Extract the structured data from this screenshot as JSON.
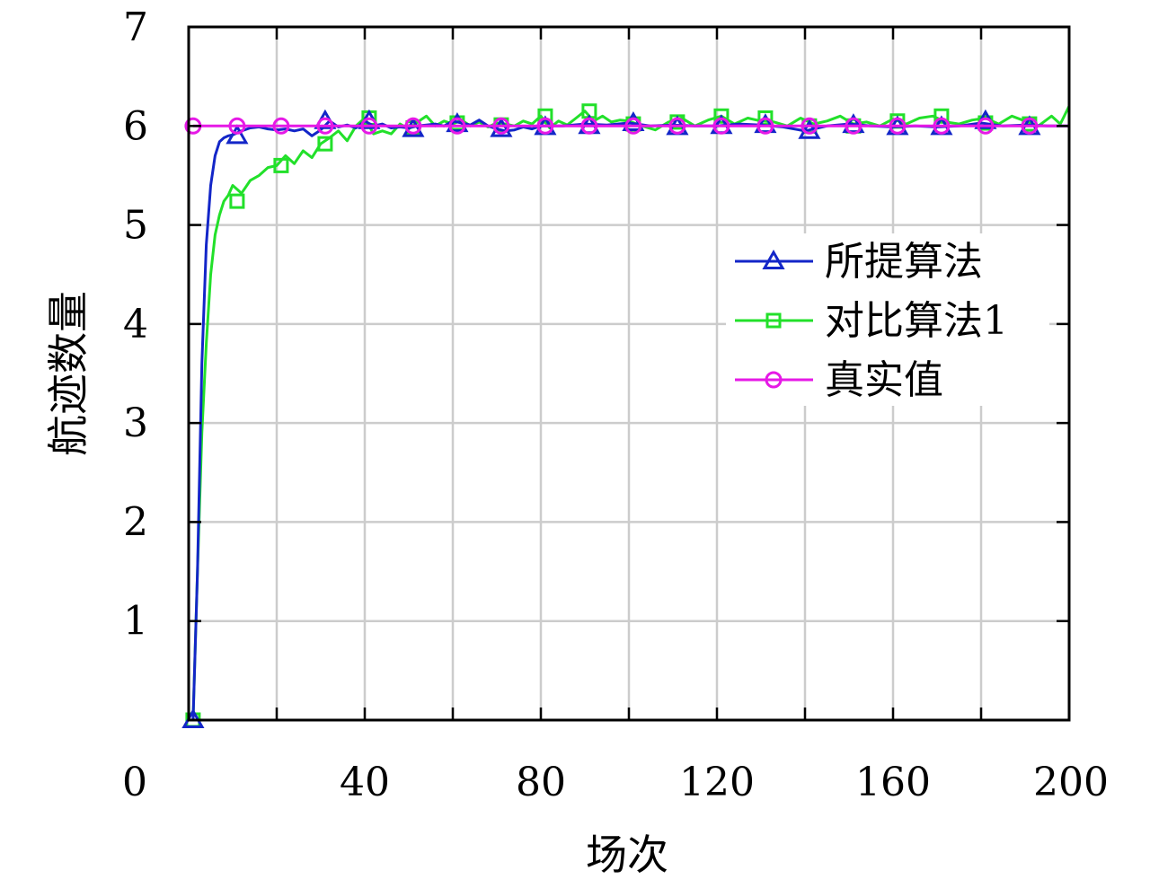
{
  "chart_data": {
    "type": "line",
    "xlabel": "场次",
    "ylabel": "航迹数量",
    "xlim": [
      0,
      200
    ],
    "ylim": [
      0,
      7
    ],
    "xticks": [
      0,
      40,
      80,
      120,
      160,
      200
    ],
    "yticks": [
      1,
      2,
      3,
      4,
      5,
      6,
      7
    ],
    "grid": true,
    "legend_position": "right",
    "series": [
      {
        "name": "所提算法",
        "color": "#1326c8",
        "marker": "triangle",
        "x": [
          1,
          2,
          3,
          4,
          5,
          6,
          7,
          8,
          9,
          10,
          12,
          14,
          16,
          18,
          20,
          22,
          24,
          26,
          28,
          30,
          32,
          34,
          36,
          38,
          40,
          42,
          44,
          46,
          48,
          50,
          52,
          54,
          56,
          58,
          60,
          62,
          64,
          66,
          68,
          70,
          72,
          74,
          76,
          78,
          80,
          85,
          90,
          95,
          100,
          105,
          110,
          115,
          120,
          125,
          130,
          135,
          140,
          145,
          150,
          155,
          160,
          165,
          170,
          175,
          180,
          185,
          190,
          195,
          200
        ],
        "y": [
          0,
          1.5,
          3.6,
          4.8,
          5.4,
          5.7,
          5.84,
          5.88,
          5.9,
          5.91,
          5.95,
          5.98,
          5.99,
          5.97,
          5.96,
          5.97,
          5.95,
          5.97,
          5.9,
          5.96,
          6.05,
          5.99,
          6.01,
          5.98,
          6.05,
          6.0,
          6.02,
          5.98,
          5.99,
          5.98,
          6.0,
          6.01,
          6.02,
          6.0,
          6.05,
          6.03,
          6.01,
          6.06,
          6.0,
          5.97,
          5.95,
          5.96,
          5.99,
          5.97,
          6.0,
          6.0,
          6.02,
          6.01,
          6.03,
          6.0,
          6.01,
          6.0,
          6.0,
          6.02,
          6.01,
          5.99,
          5.95,
          6.0,
          6.02,
          6.0,
          5.99,
          6.0,
          5.99,
          6.0,
          6.03,
          6.0,
          6.01,
          6.0,
          6.0
        ],
        "marker_x": [
          1,
          11,
          31,
          41,
          51,
          61,
          71,
          81,
          91,
          101,
          111,
          121,
          131,
          141,
          151,
          161,
          171,
          181,
          191
        ],
        "marker_y": [
          0,
          5.9,
          6.05,
          6.05,
          5.97,
          6.02,
          5.97,
          5.99,
          6.0,
          6.03,
          5.99,
          6.0,
          6.01,
          5.95,
          6.01,
          5.99,
          5.99,
          6.05,
          5.99
        ]
      },
      {
        "name": "对比算法1",
        "color": "#22e02a",
        "marker": "square",
        "x": [
          1,
          2,
          3,
          4,
          5,
          6,
          7,
          8,
          9,
          10,
          12,
          14,
          16,
          18,
          20,
          22,
          24,
          26,
          28,
          30,
          32,
          34,
          36,
          38,
          40,
          42,
          44,
          46,
          48,
          50,
          52,
          54,
          56,
          58,
          60,
          62,
          64,
          66,
          68,
          70,
          72,
          74,
          76,
          78,
          80,
          82,
          84,
          86,
          88,
          90,
          92,
          94,
          96,
          98,
          100,
          103,
          106,
          109,
          112,
          115,
          118,
          121,
          124,
          127,
          130,
          133,
          136,
          139,
          142,
          145,
          148,
          151,
          154,
          157,
          160,
          163,
          166,
          169,
          172,
          175,
          178,
          181,
          184,
          187,
          190,
          193,
          196,
          198,
          200
        ],
        "y": [
          0,
          1.5,
          2.9,
          3.8,
          4.5,
          4.9,
          5.1,
          5.24,
          5.3,
          5.4,
          5.32,
          5.45,
          5.5,
          5.58,
          5.6,
          5.7,
          5.62,
          5.75,
          5.68,
          5.82,
          5.88,
          5.95,
          5.85,
          6.0,
          6.08,
          5.92,
          5.95,
          5.92,
          6.02,
          5.97,
          6.04,
          6.1,
          6.0,
          6.05,
          6.02,
          6.06,
          6.0,
          6.04,
          5.99,
          6.03,
          6.02,
          6.0,
          6.05,
          6.02,
          6.1,
          5.98,
          6.05,
          6.01,
          6.08,
          6.15,
          6.05,
          6.1,
          6.04,
          6.06,
          6.05,
          6.0,
          5.96,
          6.04,
          6.08,
          6.0,
          6.06,
          6.1,
          6.02,
          6.08,
          6.05,
          6.04,
          6.0,
          6.08,
          6.02,
          6.05,
          6.1,
          6.02,
          6.04,
          6.0,
          6.07,
          6.02,
          6.08,
          6.1,
          6.04,
          6.02,
          6.06,
          6.08,
          6.02,
          6.1,
          6.05,
          6.0,
          6.1,
          6.02,
          6.2
        ],
        "marker_x": [
          1,
          11,
          21,
          31,
          41,
          51,
          61,
          71,
          81,
          91,
          101,
          111,
          121,
          131,
          141,
          151,
          161,
          171,
          181,
          191
        ],
        "marker_y": [
          0,
          5.24,
          5.6,
          5.82,
          6.08,
          5.98,
          6.03,
          6.01,
          6.1,
          6.15,
          6.02,
          6.04,
          6.1,
          6.08,
          6.0,
          6.0,
          6.05,
          6.1,
          6.03,
          6.02
        ]
      },
      {
        "name": "真实值",
        "color": "#e619e6",
        "marker": "circle",
        "x": [
          1,
          200
        ],
        "y": [
          6,
          6
        ],
        "marker_x": [
          1,
          11,
          21,
          31,
          41,
          51,
          61,
          71,
          81,
          91,
          101,
          111,
          121,
          131,
          141,
          151,
          161,
          171,
          181,
          191
        ],
        "marker_y": [
          6,
          6,
          6,
          6,
          6,
          6,
          6,
          6,
          6,
          6,
          6,
          6,
          6,
          6,
          6,
          6,
          6,
          6,
          6,
          6
        ]
      }
    ]
  }
}
